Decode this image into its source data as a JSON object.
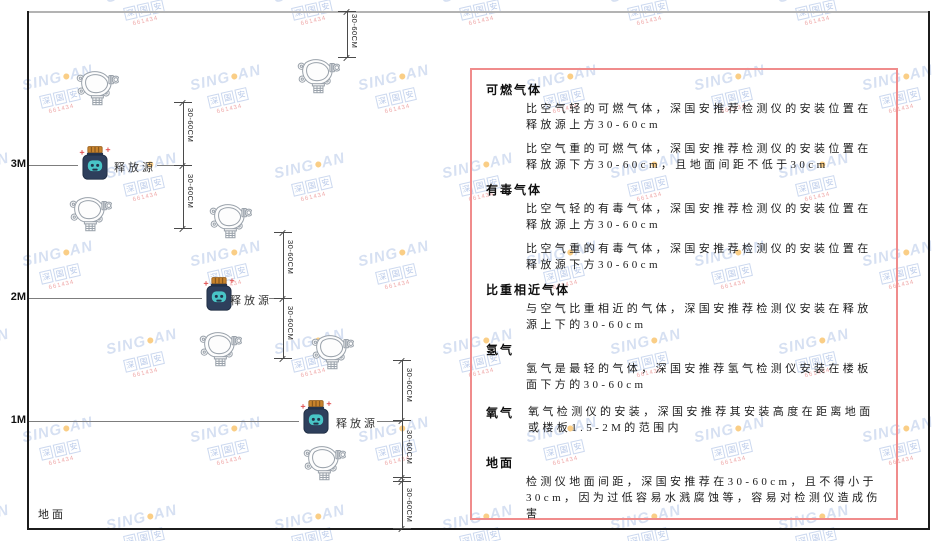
{
  "watermark": {
    "brand_left": "SING",
    "brand_right": "AN",
    "brand_cn": "深国安",
    "contact": "661434"
  },
  "diagram": {
    "height_labels": {
      "h3": "3M",
      "h2": "2M",
      "h1": "1M"
    },
    "ground_label": "地面",
    "release_source_label": "释放源",
    "dim_label": "30-60CM"
  },
  "panel": {
    "border_color": "#f08c8c",
    "sections": [
      {
        "heading": "可燃气体",
        "paragraphs": [
          "比空气轻的可燃气体，深国安推荐检测仪的安装位置在释放源上方30-60cm",
          "比空气重的可燃气体，深国安推荐检测仪的安装位置在释放源下方30-60cm，且地面间距不低于30cm"
        ]
      },
      {
        "heading": "有毒气体",
        "paragraphs": [
          "比空气轻的有毒气体，深国安推荐检测仪的安装位置在释放源上方30-60cm",
          "比空气重的有毒气体，深国安推荐检测仪的安装位置在释放源下方30-60cm"
        ]
      },
      {
        "heading": "比重相近气体",
        "paragraphs": [
          "与空气比重相近的气体，深国安推荐检测仪安装在释放源上下的30-60cm"
        ]
      },
      {
        "heading": "氢气",
        "paragraphs": [
          "氢气是最轻的气体，深国安推荐氢气检测仪安装在楼板面下方的30-60cm"
        ]
      },
      {
        "heading": "氧气",
        "paragraphs": [
          "氧气检测仪的安装，深国安推荐其安装高度在距离地面或楼板1.5-2M的范围内"
        ]
      },
      {
        "heading": "地面",
        "paragraphs": [
          "检测仪地面间距，深国安推荐在30-60cm，且不得小于30cm，因为过低容易水溅腐蚀等，容易对检测仪造成伤害"
        ]
      }
    ]
  },
  "colors": {
    "watermark_blue": "#4472c4",
    "watermark_orange": "#f5a623",
    "watermark_red": "#e05050",
    "source_body": "#2e3f5c",
    "source_cap": "#c8832c",
    "source_face": "#49c5c7"
  }
}
